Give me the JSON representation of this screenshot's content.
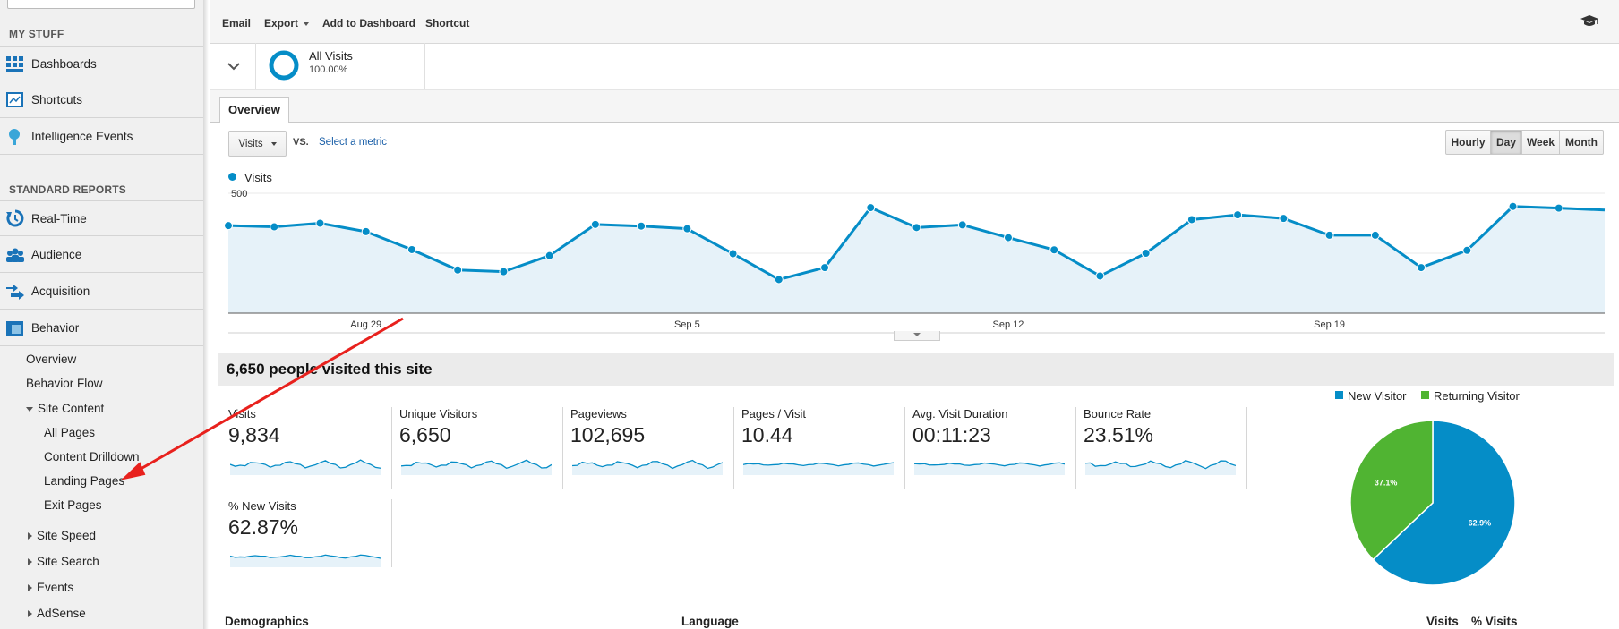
{
  "sidebar": {
    "my_stuff_title": "MY STUFF",
    "my_stuff_items": [
      {
        "label": "Dashboards",
        "icon": "dashboard-grid-icon"
      },
      {
        "label": "Shortcuts",
        "icon": "shortcut-icon"
      },
      {
        "label": "Intelligence Events",
        "icon": "lightbulb-icon"
      }
    ],
    "standard_reports_title": "STANDARD REPORTS",
    "report_items": [
      {
        "label": "Real-Time",
        "icon": "realtime-icon"
      },
      {
        "label": "Audience",
        "icon": "people-icon"
      },
      {
        "label": "Acquisition",
        "icon": "acquisition-arrows-icon"
      },
      {
        "label": "Behavior",
        "icon": "behavior-icon"
      }
    ],
    "behavior_sub": {
      "overview": "Overview",
      "flow": "Behavior Flow",
      "site_content": "Site Content",
      "content_children": [
        "All Pages",
        "Content Drilldown",
        "Landing Pages",
        "Exit Pages"
      ],
      "collapsed": [
        "Site Speed",
        "Site Search",
        "Events",
        "AdSense"
      ]
    }
  },
  "toolbar": {
    "email": "Email",
    "export": "Export",
    "add_to_dashboard": "Add to Dashboard",
    "shortcut": "Shortcut"
  },
  "segment": {
    "name": "All Visits",
    "percent": "100.00%"
  },
  "tabs": {
    "overview": "Overview"
  },
  "metric_picker": {
    "selected": "Visits",
    "vs": "VS.",
    "select_metric": "Select a metric"
  },
  "granularity": [
    "Hourly",
    "Day",
    "Week",
    "Month"
  ],
  "granularity_active": "Day",
  "colors": {
    "accent": "#058dc7",
    "fill": "#e6f2f9",
    "returning": "#50b432",
    "arrow": "#e8211d"
  },
  "chart_data": {
    "type": "line",
    "legend": "Visits",
    "y_ticks": [
      "500",
      "250"
    ],
    "ylim": [
      0,
      500
    ],
    "x_ticks": [
      "Aug 29",
      "Sep 5",
      "Sep 12",
      "Sep 19"
    ],
    "values": [
      365,
      360,
      375,
      340,
      265,
      180,
      173,
      240,
      370,
      363,
      352,
      248,
      140,
      190,
      440,
      357,
      368,
      315,
      264,
      155,
      250,
      390,
      410,
      395,
      325,
      325,
      190,
      262,
      445,
      438,
      430
    ]
  },
  "summary": {
    "headline": "6,650 people visited this site",
    "metrics": [
      {
        "label": "Visits",
        "value": "9,834"
      },
      {
        "label": "Unique Visitors",
        "value": "6,650"
      },
      {
        "label": "Pageviews",
        "value": "102,695"
      },
      {
        "label": "Pages / Visit",
        "value": "10.44"
      },
      {
        "label": "Avg. Visit Duration",
        "value": "00:11:23"
      },
      {
        "label": "Bounce Rate",
        "value": "23.51%"
      },
      {
        "label": "% New Visits",
        "value": "62.87%"
      }
    ]
  },
  "pie": {
    "legend": [
      "New Visitor",
      "Returning Visitor"
    ],
    "values": [
      62.9,
      37.1
    ],
    "labels": [
      "62.9%",
      "37.1%"
    ]
  },
  "bottom": {
    "demographics": "Demographics",
    "language": "Language",
    "visits": "Visits",
    "pct_visits": "% Visits"
  }
}
